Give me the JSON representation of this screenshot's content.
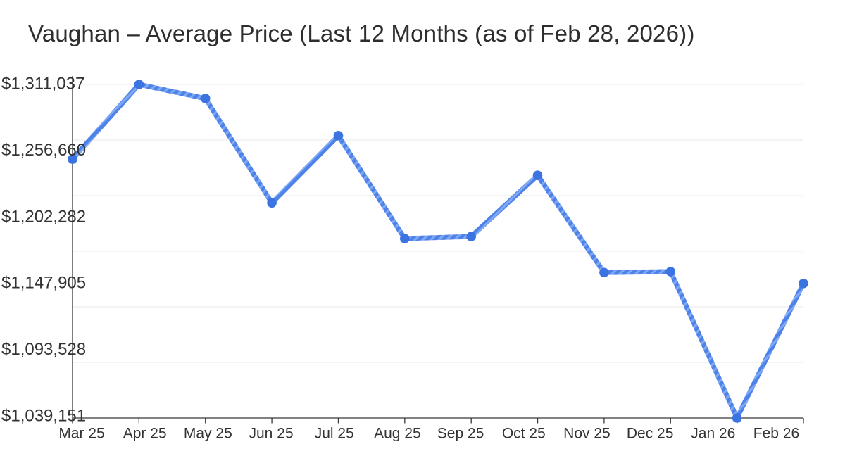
{
  "chart_data": {
    "type": "line",
    "title": "Vaughan – Average Price (Last 12 Months (as of Feb 28, 2026))",
    "categories": [
      "Mar 25",
      "Apr 25",
      "May 25",
      "Jun 25",
      "Jul 25",
      "Aug 25",
      "Sep 25",
      "Oct 25",
      "Nov 25",
      "Dec 25",
      "Jan 26",
      "Feb 26"
    ],
    "series": [
      {
        "name": "Average Price",
        "values": [
          1250200,
          1311037,
          1299600,
          1214500,
          1269300,
          1185400,
          1187100,
          1236900,
          1157700,
          1158500,
          1039151,
          1148900
        ]
      }
    ],
    "xlabel": "",
    "ylabel": "",
    "ylim": [
      1039151,
      1311037
    ],
    "y_tick_labels": [
      "$1,311,037",
      "$1,256,660",
      "$1,202,282",
      "$1,147,905",
      "$1,093,528",
      "$1,039,151"
    ],
    "y_tick_values": [
      1311037,
      1256660,
      1202282,
      1147905,
      1093528,
      1039151
    ],
    "grid": "horizontal",
    "legend_position": "none",
    "colors": {
      "line": "#4c83ea",
      "line_stripe": "#82a8f2",
      "point": "#3b74e0",
      "grid": "#eaeaea",
      "axis": "#383838",
      "tick_text": "#333333",
      "title_text": "#2e2e2e",
      "background": "#ffffff"
    }
  }
}
